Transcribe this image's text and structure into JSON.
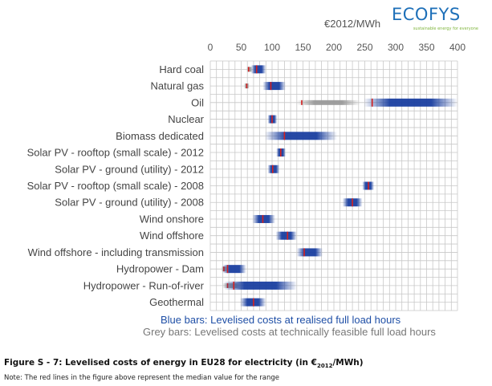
{
  "logo": {
    "name": "ECOFYS",
    "tagline": "sustainable energy for everyone"
  },
  "unit_label": "€2012/MWh",
  "legend": {
    "blue": "Blue bars: Levelised costs at realised full load hours",
    "grey": "Grey bars: Levelised costs at technically feasible full load hours"
  },
  "caption": {
    "prefix": "Figure S - 7: Levelised costs of energy in EU28 for electricity (in €",
    "sub": "2012",
    "suffix": "/MWh)"
  },
  "note": "Note: The red lines in the figure above represent the median value for the range",
  "colors": {
    "blue": "#1a3fa0",
    "grey": "#9a9a9a",
    "median": "#d42020",
    "grid": "#c8c8c8"
  },
  "chart_data": {
    "type": "bar",
    "orientation": "horizontal-range",
    "xlim": [
      0,
      400
    ],
    "xticks": [
      0,
      50,
      100,
      150,
      200,
      250,
      300,
      350,
      400
    ],
    "grid": true,
    "categories": [
      "Hard coal",
      "Natural gas",
      "Oil",
      "Nuclear",
      "Biomass dedicated",
      "Solar PV - rooftop (small scale) - 2012",
      "Solar PV - ground (utility) - 2012",
      "Solar PV - rooftop (small scale) - 2008",
      "Solar PV - ground (utility) - 2008",
      "Wind onshore",
      "Wind offshore",
      "Wind offshore - including transmission",
      "Hydropower - Dam",
      "Hydropower - Run-of-river",
      "Geothermal"
    ],
    "series": [
      {
        "name": "Blue bars: Levelised costs at realised full load hours",
        "ranges": [
          [
            66,
            90
          ],
          [
            85,
            122
          ],
          [
            248,
            400
          ],
          [
            93,
            108
          ],
          [
            88,
            205
          ],
          [
            107,
            122
          ],
          [
            93,
            112
          ],
          [
            246,
            265
          ],
          [
            214,
            246
          ],
          [
            68,
            105
          ],
          [
            106,
            140
          ],
          [
            140,
            182
          ],
          [
            20,
            58
          ],
          [
            22,
            140
          ],
          [
            48,
            90
          ]
        ],
        "medians": [
          75,
          98,
          262,
          100,
          120,
          114,
          101,
          256,
          230,
          85,
          125,
          152,
          28,
          38,
          70
        ]
      },
      {
        "name": "Grey bars: Levelised costs at technically feasible full load hours",
        "ranges": [
          [
            59,
            68
          ],
          [
            55,
            63
          ],
          [
            140,
            242
          ],
          null,
          null,
          null,
          null,
          null,
          null,
          null,
          null,
          null,
          [
            18,
            28
          ],
          [
            20,
            50
          ],
          null
        ],
        "medians": [
          62,
          59,
          148,
          null,
          null,
          null,
          null,
          null,
          null,
          null,
          null,
          null,
          22,
          28,
          null
        ]
      }
    ]
  }
}
